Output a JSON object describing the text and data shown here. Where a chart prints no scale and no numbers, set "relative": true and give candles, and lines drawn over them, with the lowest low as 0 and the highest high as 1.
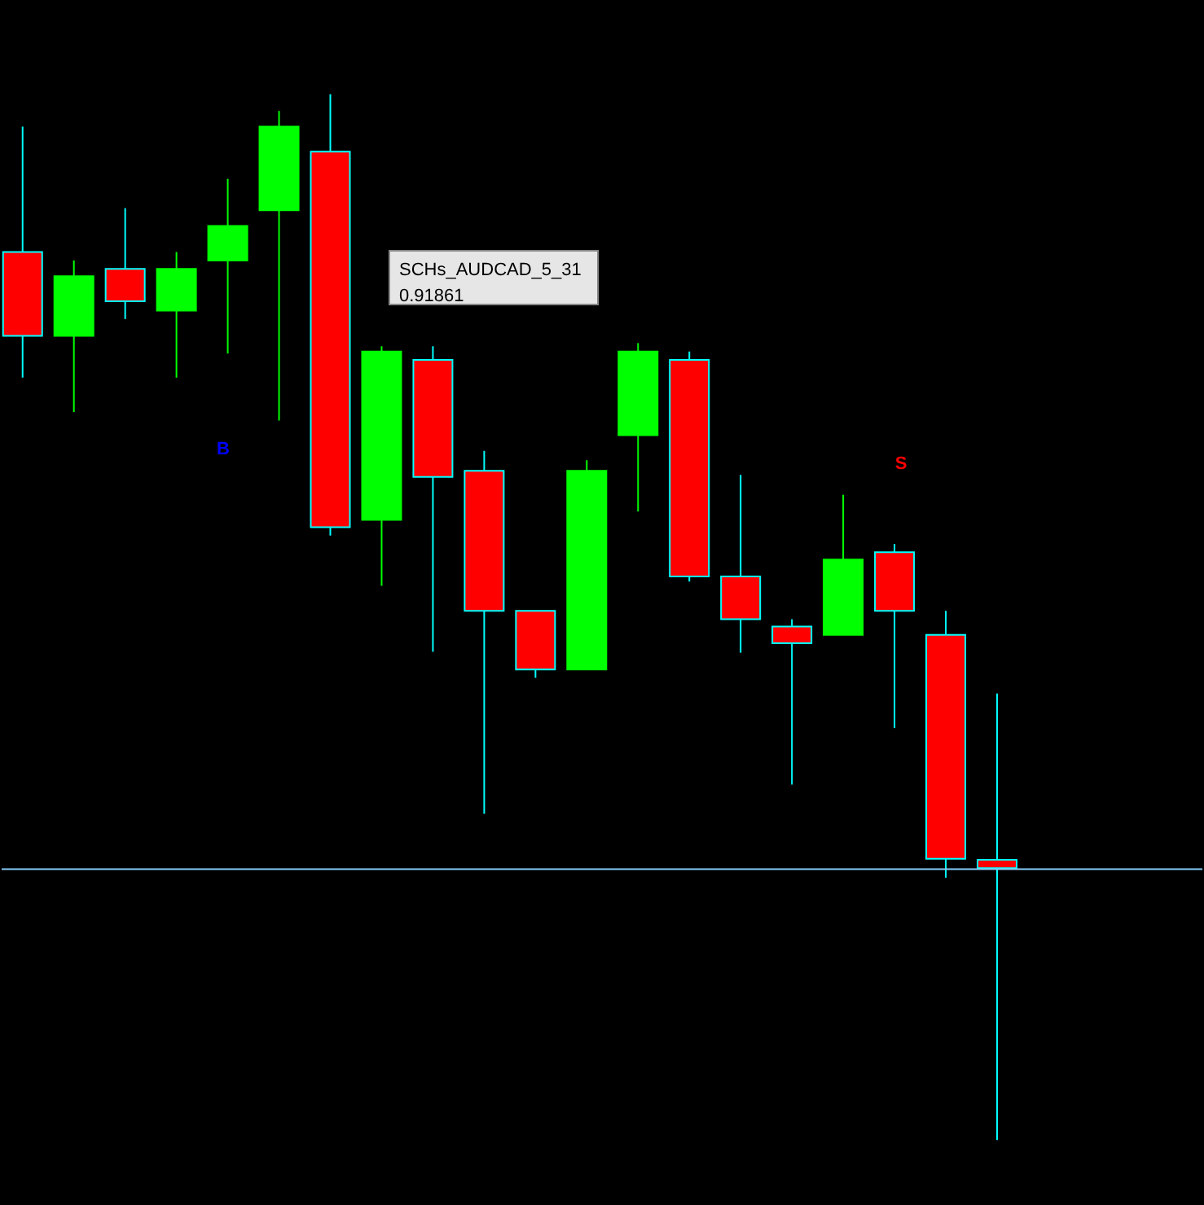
{
  "chart_data": {
    "type": "candlestick",
    "relative": true,
    "categories": [
      null,
      null,
      null,
      null,
      null,
      null,
      null,
      null,
      null,
      null,
      null,
      null,
      null,
      null,
      null,
      null,
      null,
      null,
      null,
      null
    ],
    "ohlc": [
      [
        0.849,
        0.969,
        0.729,
        0.769
      ],
      [
        0.769,
        0.841,
        0.696,
        0.826
      ],
      [
        0.833,
        0.891,
        0.785,
        0.802
      ],
      [
        0.793,
        0.849,
        0.729,
        0.833
      ],
      [
        0.841,
        0.919,
        0.752,
        0.874
      ],
      [
        0.889,
        0.984,
        0.688,
        0.969
      ],
      [
        0.945,
        1,
        0.578,
        0.586
      ],
      [
        0.593,
        0.759,
        0.53,
        0.754
      ],
      [
        0.746,
        0.759,
        0.467,
        0.634
      ],
      [
        0.64,
        0.659,
        0.312,
        0.506
      ],
      [
        0.506,
        0.506,
        0.442,
        0.45
      ],
      [
        0.45,
        0.65,
        0.45,
        0.64
      ],
      [
        0.674,
        0.762,
        0.601,
        0.754
      ],
      [
        0.746,
        0.754,
        0.534,
        0.539
      ],
      [
        0.539,
        0.636,
        0.466,
        0.498
      ],
      [
        0.491,
        0.498,
        0.34,
        0.475
      ],
      [
        0.483,
        0.617,
        0.483,
        0.555
      ],
      [
        0.562,
        0.57,
        0.394,
        0.506
      ],
      [
        0.483,
        0.506,
        0.251,
        0.269
      ],
      [
        0.268,
        0.427,
        0,
        0.26
      ]
    ],
    "colors": [
      "#ff0000",
      "#00ff00",
      "#ff0000",
      "#00ff00",
      "#00ff00",
      "#00ff00",
      "#ff0000",
      "#00ff00",
      "#ff0000",
      "#ff0000",
      "#ff0000",
      "#00ff00",
      "#00ff00",
      "#ff0000",
      "#ff0000",
      "#ff0000",
      "#00ff00",
      "#ff0000",
      "#ff0000",
      "#ff0000"
    ],
    "ref_lines": [
      {
        "axis": "y",
        "value": 0.259,
        "color": "#87cefa"
      }
    ],
    "annotations": [
      "SCHs_AUDCAD_5_31",
      "0.91861",
      "B",
      "S"
    ]
  }
}
